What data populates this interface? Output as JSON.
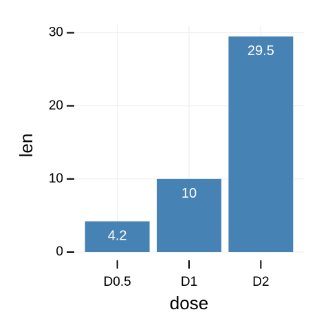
{
  "chart_data": {
    "type": "bar",
    "categories": [
      "D0.5",
      "D1",
      "D2"
    ],
    "values": [
      4.2,
      10,
      29.5
    ],
    "color": "#4682b4",
    "ylim": [
      0,
      31
    ],
    "yticks": [
      0,
      10,
      20,
      30
    ],
    "x_label": "dose",
    "y_label": "len",
    "grid": true
  }
}
